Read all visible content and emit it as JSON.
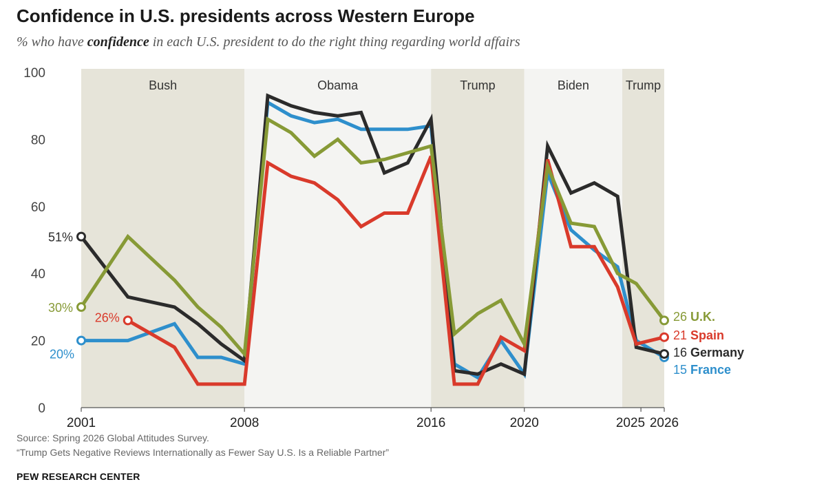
{
  "title": "Confidence in U.S. presidents across Western Europe",
  "subtitle": {
    "pre": "% who have ",
    "bold": "confidence",
    "post": " in each U.S. president to do the right thing regarding world affairs"
  },
  "source": {
    "line1": "Source: Spring 2026 Global Attitudes Survey.",
    "line2": "“Trump Gets Negative Reviews Internationally as Fewer Say U.S. Is a Reliable Partner”"
  },
  "credit": "PEW RESEARCH CENTER",
  "chart_data": {
    "type": "line",
    "x_range": [
      2001,
      2026
    ],
    "ylim": [
      0,
      100
    ],
    "y_ticks": [
      0,
      20,
      40,
      60,
      80,
      100
    ],
    "x_ticks": [
      2001,
      2008,
      2016,
      2020,
      2025,
      2026
    ],
    "grid": false,
    "eras": [
      {
        "label": "Bush",
        "start": 2001,
        "end": 2008,
        "color": "#e6e4d9"
      },
      {
        "label": "Obama",
        "start": 2008,
        "end": 2016,
        "color": "#f4f4f2"
      },
      {
        "label": "Trump",
        "start": 2016,
        "end": 2020,
        "color": "#e6e4d9"
      },
      {
        "label": "Biden",
        "start": 2020,
        "end": 2024.2,
        "color": "#f4f4f2"
      },
      {
        "label": "Trump",
        "start": 2024.2,
        "end": 2026,
        "color": "#e6e4d9"
      }
    ],
    "series": [
      {
        "name": "France",
        "color": "#2e8fcc",
        "start_label": "20%",
        "end_label_value": "15",
        "end_label_name": "France",
        "points": [
          [
            2001,
            20
          ],
          [
            2003,
            20
          ],
          [
            2005,
            25
          ],
          [
            2006,
            15
          ],
          [
            2007,
            15
          ],
          [
            2008,
            13
          ],
          [
            2009,
            91
          ],
          [
            2010,
            87
          ],
          [
            2011,
            85
          ],
          [
            2012,
            86
          ],
          [
            2013,
            83
          ],
          [
            2014,
            83
          ],
          [
            2015,
            83
          ],
          [
            2016,
            84
          ],
          [
            2017,
            13
          ],
          [
            2018,
            9
          ],
          [
            2019,
            20
          ],
          [
            2020,
            10
          ],
          [
            2021,
            70
          ],
          [
            2022,
            53
          ],
          [
            2023,
            47
          ],
          [
            2024,
            42
          ],
          [
            2024.8,
            20
          ],
          [
            2026,
            15
          ]
        ]
      },
      {
        "name": "Germany",
        "color": "#2b2b2b",
        "start_label": "51%",
        "end_label_value": "16",
        "end_label_name": "Germany",
        "points": [
          [
            2001,
            51
          ],
          [
            2003,
            33
          ],
          [
            2005,
            30
          ],
          [
            2006,
            25
          ],
          [
            2007,
            19
          ],
          [
            2008,
            14
          ],
          [
            2009,
            93
          ],
          [
            2010,
            90
          ],
          [
            2011,
            88
          ],
          [
            2012,
            87
          ],
          [
            2013,
            88
          ],
          [
            2014,
            70
          ],
          [
            2015,
            73
          ],
          [
            2016,
            86
          ],
          [
            2017,
            11
          ],
          [
            2018,
            10
          ],
          [
            2019,
            13
          ],
          [
            2020,
            10
          ],
          [
            2021,
            78
          ],
          [
            2022,
            64
          ],
          [
            2023,
            67
          ],
          [
            2024,
            63
          ],
          [
            2024.8,
            18
          ],
          [
            2026,
            16
          ]
        ]
      },
      {
        "name": "Spain",
        "color": "#d93a2b",
        "start_label": "26%",
        "end_label_value": "21",
        "end_label_name": "Spain",
        "points": [
          [
            2003,
            26
          ],
          [
            2005,
            18
          ],
          [
            2006,
            7
          ],
          [
            2007,
            7
          ],
          [
            2008,
            7
          ],
          [
            2009,
            73
          ],
          [
            2010,
            69
          ],
          [
            2011,
            67
          ],
          [
            2012,
            62
          ],
          [
            2013,
            54
          ],
          [
            2014,
            58
          ],
          [
            2015,
            58
          ],
          [
            2016,
            75
          ],
          [
            2017,
            7
          ],
          [
            2018,
            7
          ],
          [
            2019,
            21
          ],
          [
            2020,
            17
          ],
          [
            2021,
            74
          ],
          [
            2022,
            48
          ],
          [
            2023,
            48
          ],
          [
            2024,
            36
          ],
          [
            2024.8,
            19
          ],
          [
            2026,
            21
          ]
        ]
      },
      {
        "name": "U.K.",
        "color": "#879a36",
        "start_label": "30%",
        "end_label_value": "26",
        "end_label_name": "U.K.",
        "points": [
          [
            2001,
            30
          ],
          [
            2003,
            51
          ],
          [
            2005,
            38
          ],
          [
            2006,
            30
          ],
          [
            2007,
            24
          ],
          [
            2008,
            16
          ],
          [
            2009,
            86
          ],
          [
            2010,
            82
          ],
          [
            2011,
            75
          ],
          [
            2012,
            80
          ],
          [
            2013,
            73
          ],
          [
            2014,
            74
          ],
          [
            2015,
            76
          ],
          [
            2016,
            78
          ],
          [
            2017,
            22
          ],
          [
            2018,
            28
          ],
          [
            2019,
            32
          ],
          [
            2020,
            19
          ],
          [
            2021,
            72
          ],
          [
            2022,
            55
          ],
          [
            2023,
            54
          ],
          [
            2024,
            40
          ],
          [
            2024.8,
            37
          ],
          [
            2026,
            26
          ]
        ]
      }
    ]
  }
}
